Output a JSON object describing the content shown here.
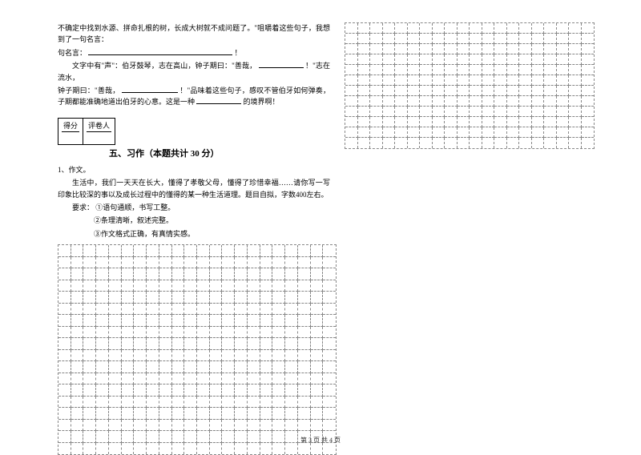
{
  "top_text": {
    "line1": "不确定中找到水源、拼命扎根的树，长成大树就不成问题了。\"咀嚼着这些句子，我想到了一句名言：",
    "line2_label": "！",
    "line3a": "文字中有\"声\"：伯牙鼓琴，志在高山，钟子期曰：\"善哉，",
    "line3b": "！\"志在流水，",
    "line4a": "钟子期曰：\"善哉，",
    "line4b": "！\"品味着这些句子，感叹不管伯牙如何弹奏，子期都能准确地道出伯牙的心意。这是一种",
    "line4c": "的境界啊！"
  },
  "score": {
    "col1": "得分",
    "col2": "评卷人"
  },
  "section": {
    "title": "五、习作（本题共计 30 分）"
  },
  "essay": {
    "num": "1、作文。",
    "p1": "生活中，我们一天天在长大，懂得了孝敬父母，懂得了珍惜幸福……请你写一写印象比较深的事以及成长过程中的懂得的某一种生活道理。题目自拟，字数400左右。",
    "req_label": "要求：",
    "req1": "①语句通顺，书写工整。",
    "req2": "②条理清晰，叙述完整。",
    "req3": "③作文格式正确，有真情实感。"
  },
  "grid_right": {
    "cols": 20,
    "rows": 12
  },
  "grid_main": {
    "cols": 22,
    "rows": 18
  },
  "footer": "第 3 页 共 4 页",
  "style": {
    "blank_long": "180px",
    "blank_med": "70px",
    "blank_short": "56px"
  }
}
